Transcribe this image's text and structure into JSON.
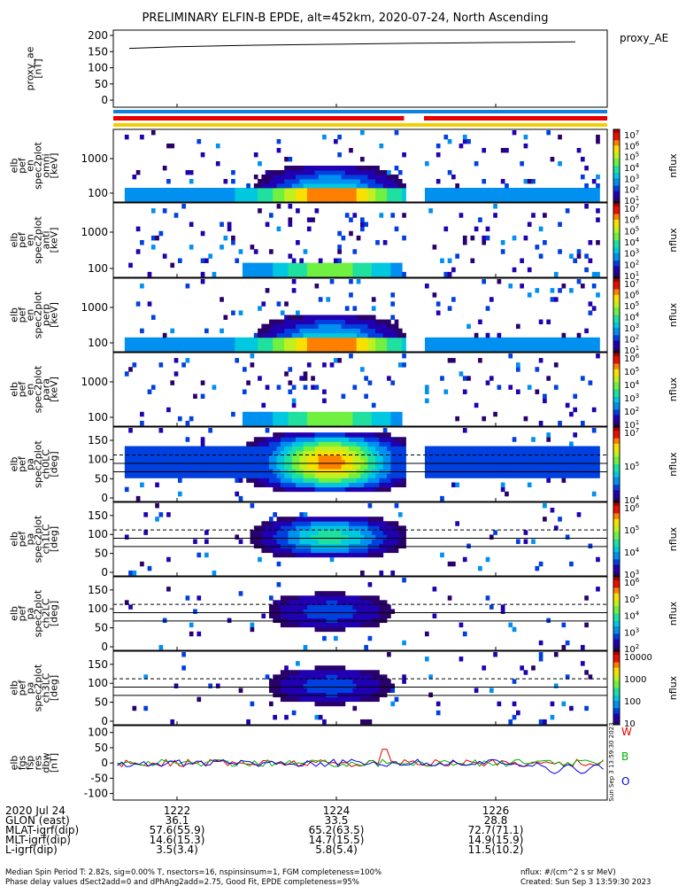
{
  "title": "PRELIMINARY ELFIN-B EPDE, alt=452km, 2020-07-24, North Ascending",
  "chart_data": [
    {
      "type": "line",
      "panel": "proxy_ae",
      "ylabel": [
        "proxy_ae",
        "[nT]"
      ],
      "legend": "proxy_AE",
      "yticks": [
        0,
        50,
        100,
        150,
        200
      ],
      "ylim": [
        0,
        210
      ],
      "series": [
        {
          "x": [
            1221.4,
            1222.0,
            1223.0,
            1224.0,
            1225.0,
            1226.0,
            1227.0
          ],
          "values": [
            160,
            165,
            170,
            173,
            176,
            178,
            180
          ]
        }
      ]
    },
    {
      "type": "heatmap",
      "panel": "pef_en_spec2plot_omni",
      "ylabel": [
        "elb",
        "pef",
        "en",
        "spec2plot",
        "omni",
        "[keV]"
      ],
      "yticks": [
        "100",
        "1000"
      ],
      "colorbar": {
        "label": "nflux",
        "ticks": [
          "10^7",
          "10^6",
          "10^5",
          "10^4",
          "10^3",
          "10^2",
          "10^1"
        ]
      }
    },
    {
      "type": "heatmap",
      "panel": "pef_en_spec2plot_anti",
      "ylabel": [
        "elb",
        "pef",
        "en",
        "spec2plot",
        "anti",
        "[keV]"
      ],
      "yticks": [
        "100",
        "1000"
      ],
      "colorbar": {
        "label": "nflux",
        "ticks": [
          "10^7",
          "10^6",
          "10^5",
          "10^4",
          "10^3",
          "10^2",
          "10^1"
        ]
      }
    },
    {
      "type": "heatmap",
      "panel": "pef_en_spec2plot_perp",
      "ylabel": [
        "elb",
        "pef",
        "en",
        "spec2plot",
        "perp",
        "[keV]"
      ],
      "yticks": [
        "100",
        "1000"
      ],
      "colorbar": {
        "label": "nflux",
        "ticks": [
          "10^7",
          "10^6",
          "10^5",
          "10^4",
          "10^3",
          "10^2",
          "10^1"
        ]
      }
    },
    {
      "type": "heatmap",
      "panel": "pef_en_spec2plot_para",
      "ylabel": [
        "elb",
        "pef",
        "en",
        "spec2plot",
        "para",
        "[keV]"
      ],
      "yticks": [
        "100",
        "1000"
      ],
      "colorbar": {
        "label": "nflux",
        "ticks": [
          "10^6",
          "10^5",
          "10^4",
          "10^3",
          "10^2",
          "10^1"
        ]
      }
    },
    {
      "type": "heatmap",
      "panel": "pef_pa_spec2plot_ch0LC",
      "ylabel": [
        "elb",
        "pef",
        "pa",
        "spec2plot",
        "ch0LC",
        "[deg]"
      ],
      "yticks": [
        "0",
        "50",
        "100",
        "150"
      ],
      "colorbar": {
        "label": "nflux",
        "ticks": [
          "10^7",
          "10^5",
          "10^4"
        ]
      }
    },
    {
      "type": "heatmap",
      "panel": "pef_pa_spec2plot_ch1LC",
      "ylabel": [
        "elb",
        "pef",
        "pa",
        "spec2plot",
        "ch1LC",
        "[deg]"
      ],
      "yticks": [
        "0",
        "50",
        "100",
        "150"
      ],
      "colorbar": {
        "label": "nflux",
        "ticks": [
          "10^6",
          "10^5",
          "10^4",
          "10^3"
        ]
      }
    },
    {
      "type": "heatmap",
      "panel": "pef_pa_spec2plot_ch2LC",
      "ylabel": [
        "elb",
        "pef",
        "pa",
        "spec2plot",
        "ch2LC",
        "[deg]"
      ],
      "yticks": [
        "0",
        "50",
        "100",
        "150"
      ],
      "colorbar": {
        "label": "nflux",
        "ticks": [
          "10^6",
          "10^5",
          "10^4",
          "10^3",
          "10^2"
        ]
      }
    },
    {
      "type": "heatmap",
      "panel": "pef_pa_spec2plot_ch3LC",
      "ylabel": [
        "elb",
        "pef",
        "pa",
        "spec2plot",
        "ch3LC",
        "[deg]"
      ],
      "yticks": [
        "0",
        "50",
        "100",
        "150"
      ],
      "colorbar": {
        "label": "nflux",
        "ticks": [
          "10000",
          "1000",
          "100",
          "10"
        ]
      }
    },
    {
      "type": "line",
      "panel": "fgs_res_dbw",
      "ylabel": [
        "elb",
        "fgs",
        "fsp",
        "res",
        "dbw",
        "[nT]"
      ],
      "yticks": [
        "100",
        "50",
        "0",
        "-50",
        "-100"
      ],
      "ylim": [
        -110,
        105
      ],
      "legend": [
        "W",
        "B",
        "O"
      ],
      "legend_colors": [
        "#e00000",
        "#00b000",
        "#0000e0"
      ],
      "stamp": "Sun Sep 3 13:59:30 2023"
    }
  ],
  "xaxis": {
    "rows": [
      {
        "label": "2020 Jul 24",
        "values": [
          "1222",
          "1224",
          "1226"
        ]
      },
      {
        "label": "GLON (east)",
        "values": [
          "36.1",
          "33.5",
          "28.8"
        ]
      },
      {
        "label": "MLAT-igrf(dip)",
        "values": [
          "57.6(55.9)",
          "65.2(63.5)",
          "72.7(71.1)"
        ]
      },
      {
        "label": "MLT-igrf(dip)",
        "values": [
          "14.6(15.3)",
          "14.7(15.5)",
          "14.9(15.9)"
        ]
      },
      {
        "label": "L-igrf(dip)",
        "values": [
          "3.5(3.4)",
          "5.8(5.4)",
          "11.5(10.2)"
        ]
      }
    ]
  },
  "footer": {
    "line1": "Median Spin Period T: 2.82s, sig=0.00% T, nsectors=16, nspinsinsum=1, FGM completeness=100%",
    "line2": "Phase delay values dSect2add=0 and dPhAng2add=2.75, Good Fit, EPDE completeness=95%",
    "units": "nflux: #/(cm^2 s sr MeV)",
    "created": "Created: Sun Sep  3 13:59:30 2023"
  },
  "colors": {
    "red": "#e80000",
    "blue": "#1080e0",
    "yellow": "#f0d000",
    "green": "#00b000"
  }
}
